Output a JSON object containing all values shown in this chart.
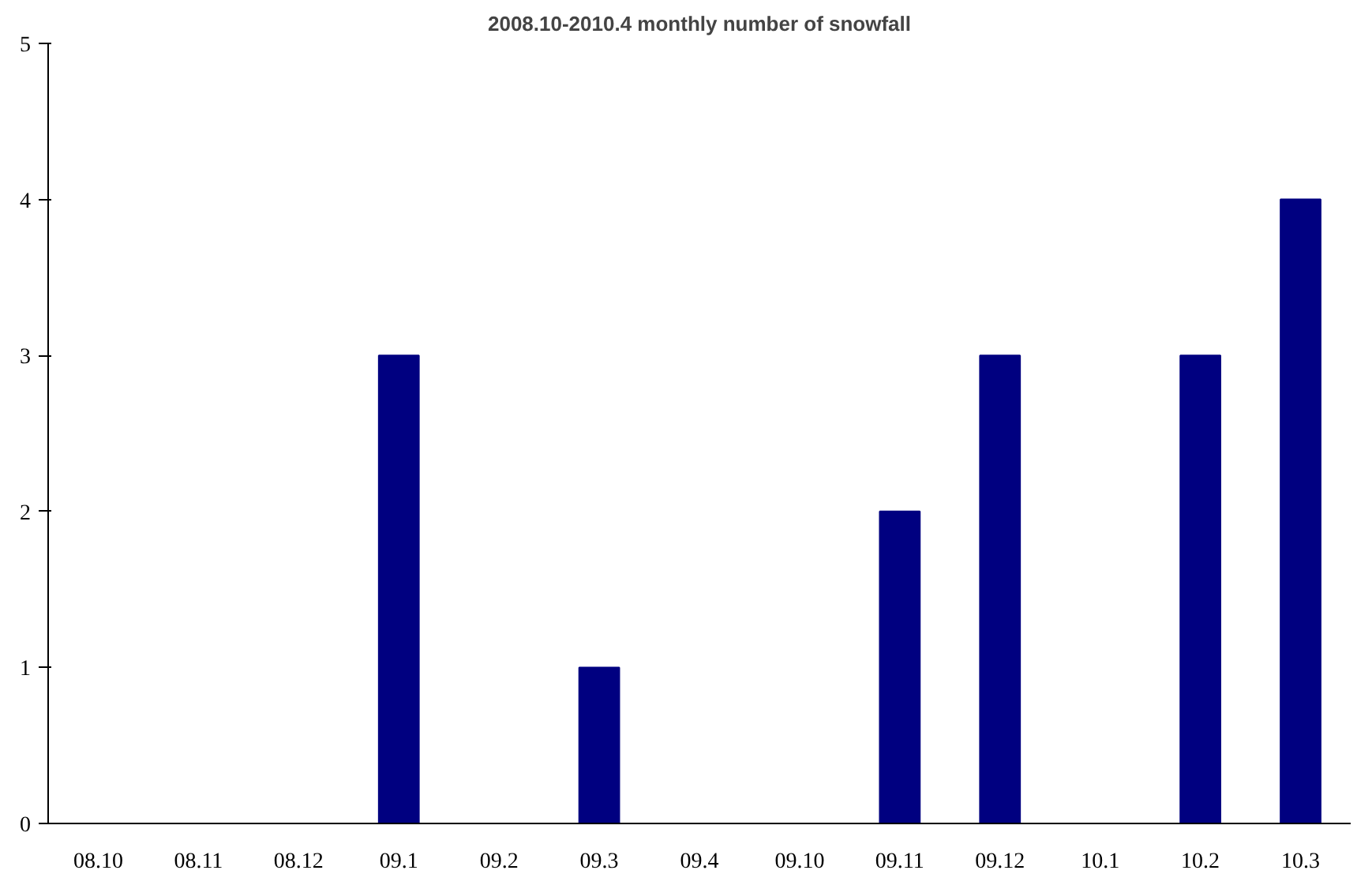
{
  "chart_data": {
    "type": "bar",
    "title": "2008.10-2010.4 monthly number of snowfall",
    "categories": [
      "08.10",
      "08.11",
      "08.12",
      "09.1",
      "09.2",
      "09.3",
      "09.4",
      "09.10",
      "09.11",
      "09.12",
      "10.1",
      "10.2",
      "10.3"
    ],
    "values": [
      0,
      0,
      0,
      3,
      0,
      1,
      0,
      0,
      2,
      3,
      0,
      3,
      4
    ],
    "color": "#000080",
    "ylim": [
      0,
      5
    ],
    "yticks": [
      0,
      1,
      2,
      3,
      4,
      5
    ],
    "grid": false
  }
}
